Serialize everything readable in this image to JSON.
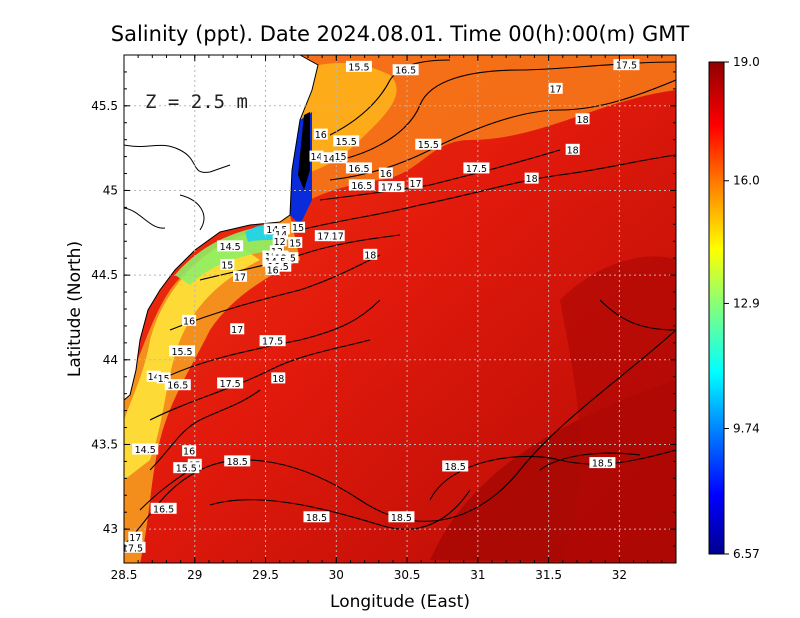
{
  "chart_data": {
    "type": "heatmap",
    "title": "Salinity (ppt). Date 2024.08.01. Time 00(h):00(m) GMT",
    "xlabel": "Longitude (East)",
    "ylabel": "Latitude (North)",
    "depth_label": "Z = 2.5 m",
    "xlim": [
      28.5,
      32.4
    ],
    "ylim": [
      42.8,
      45.8
    ],
    "x_ticks": [
      "28.5",
      "29",
      "29.5",
      "30",
      "30.5",
      "31",
      "31.5",
      "32"
    ],
    "x_tick_values": [
      28.5,
      29,
      29.5,
      30,
      30.5,
      31,
      31.5,
      32
    ],
    "y_ticks": [
      "43",
      "43.5",
      "44",
      "44.5",
      "45",
      "45.5"
    ],
    "y_tick_values": [
      43,
      43.5,
      44,
      44.5,
      45,
      45.5
    ],
    "grid": true,
    "colorbar": {
      "min": 6.57,
      "max": 19.0,
      "tick_labels": [
        "19.0",
        "16.0",
        "12.9",
        "9.74",
        "6.57"
      ],
      "tick_values": [
        19.0,
        16.0,
        12.9,
        9.74,
        6.57
      ]
    },
    "contour_labels": [
      {
        "text": "15.5",
        "lon": 30.16,
        "lat": 45.73
      },
      {
        "text": "16.5",
        "lon": 30.49,
        "lat": 45.71
      },
      {
        "text": "17.5",
        "lon": 32.05,
        "lat": 45.74
      },
      {
        "text": "17",
        "lon": 31.55,
        "lat": 45.6
      },
      {
        "text": "18",
        "lon": 31.74,
        "lat": 45.42
      },
      {
        "text": "18",
        "lon": 31.67,
        "lat": 45.24
      },
      {
        "text": "16",
        "lon": 29.89,
        "lat": 45.33
      },
      {
        "text": "15.5",
        "lon": 30.07,
        "lat": 45.29
      },
      {
        "text": "15.5",
        "lon": 30.65,
        "lat": 45.27
      },
      {
        "text": "14",
        "lon": 29.86,
        "lat": 45.2
      },
      {
        "text": "14.5",
        "lon": 29.98,
        "lat": 45.19
      },
      {
        "text": "15",
        "lon": 30.03,
        "lat": 45.2
      },
      {
        "text": "16.5",
        "lon": 30.16,
        "lat": 45.13
      },
      {
        "text": "16",
        "lon": 30.35,
        "lat": 45.1
      },
      {
        "text": "17.5",
        "lon": 30.99,
        "lat": 45.13
      },
      {
        "text": "18",
        "lon": 31.38,
        "lat": 45.07
      },
      {
        "text": "16.5",
        "lon": 30.18,
        "lat": 45.03
      },
      {
        "text": "17.5",
        "lon": 30.39,
        "lat": 45.02
      },
      {
        "text": "17",
        "lon": 30.56,
        "lat": 45.04
      },
      {
        "text": "15",
        "lon": 29.73,
        "lat": 44.78
      },
      {
        "text": "14.5",
        "lon": 29.58,
        "lat": 44.77
      },
      {
        "text": "14",
        "lon": 29.61,
        "lat": 44.74
      },
      {
        "text": "17.5",
        "lon": 29.94,
        "lat": 44.73
      },
      {
        "text": "17",
        "lon": 30.01,
        "lat": 44.73
      },
      {
        "text": "12",
        "lon": 29.6,
        "lat": 44.7
      },
      {
        "text": "14.5",
        "lon": 29.25,
        "lat": 44.67
      },
      {
        "text": "15",
        "lon": 29.71,
        "lat": 44.69
      },
      {
        "text": "13",
        "lon": 29.58,
        "lat": 44.64
      },
      {
        "text": "15.5",
        "lon": 29.57,
        "lat": 44.61
      },
      {
        "text": "13.5",
        "lon": 29.64,
        "lat": 44.6
      },
      {
        "text": "18",
        "lon": 30.24,
        "lat": 44.62
      },
      {
        "text": "14.5",
        "lon": 29.57,
        "lat": 44.58
      },
      {
        "text": "16.5",
        "lon": 29.59,
        "lat": 44.55
      },
      {
        "text": "15",
        "lon": 29.23,
        "lat": 44.56
      },
      {
        "text": "16",
        "lon": 29.55,
        "lat": 44.53
      },
      {
        "text": "17",
        "lon": 29.32,
        "lat": 44.49
      },
      {
        "text": "16",
        "lon": 28.96,
        "lat": 44.23
      },
      {
        "text": "17",
        "lon": 29.3,
        "lat": 44.18
      },
      {
        "text": "17.5",
        "lon": 29.55,
        "lat": 44.11
      },
      {
        "text": "15.5",
        "lon": 28.91,
        "lat": 44.05
      },
      {
        "text": "18",
        "lon": 29.59,
        "lat": 43.89
      },
      {
        "text": "14",
        "lon": 28.71,
        "lat": 43.9
      },
      {
        "text": "15",
        "lon": 28.78,
        "lat": 43.89
      },
      {
        "text": "16.5",
        "lon": 28.88,
        "lat": 43.85
      },
      {
        "text": "17.5",
        "lon": 29.25,
        "lat": 43.86
      },
      {
        "text": "14.5",
        "lon": 28.65,
        "lat": 43.47
      },
      {
        "text": "16",
        "lon": 28.96,
        "lat": 43.46
      },
      {
        "text": "15",
        "lon": 29.0,
        "lat": 43.38
      },
      {
        "text": "15.5",
        "lon": 28.94,
        "lat": 43.36
      },
      {
        "text": "18.5",
        "lon": 29.3,
        "lat": 43.4
      },
      {
        "text": "18.5",
        "lon": 30.84,
        "lat": 43.37
      },
      {
        "text": "18.5",
        "lon": 31.88,
        "lat": 43.39
      },
      {
        "text": "16.5",
        "lon": 28.78,
        "lat": 43.12
      },
      {
        "text": "18.5",
        "lon": 29.86,
        "lat": 43.07
      },
      {
        "text": "18.5",
        "lon": 30.46,
        "lat": 43.07
      },
      {
        "text": "17",
        "lon": 28.58,
        "lat": 42.95
      },
      {
        "text": "17.5",
        "lon": 28.56,
        "lat": 42.89
      }
    ]
  }
}
